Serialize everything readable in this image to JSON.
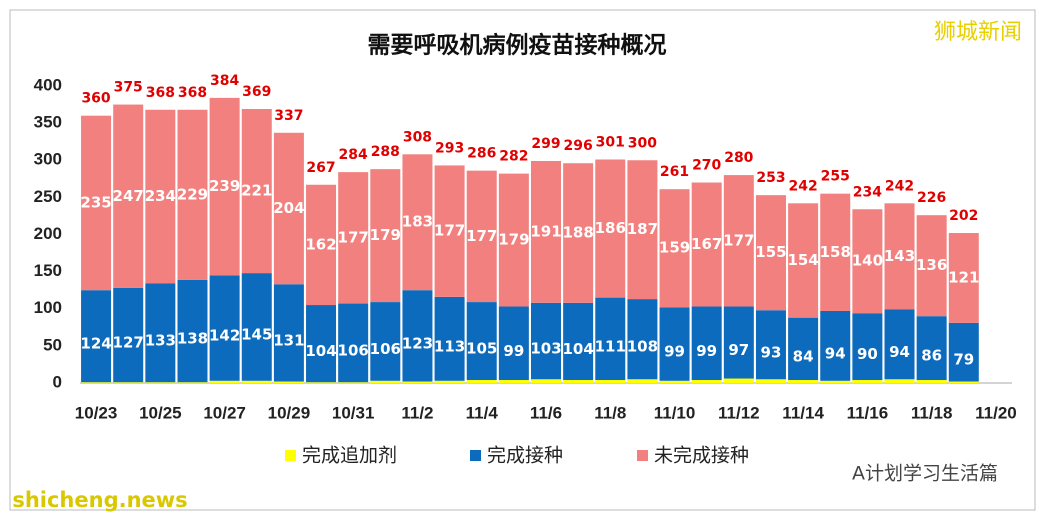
{
  "chart_data": {
    "type": "stacked_bar",
    "title": "需要呼吸机病例疫苗接种概况",
    "categories": [
      "10/23",
      null,
      "10/25",
      null,
      "10/27",
      null,
      "10/29",
      null,
      "10/31",
      null,
      "11/2",
      null,
      "11/4",
      null,
      "11/6",
      null,
      "11/8",
      null,
      "11/10",
      null,
      "11/12",
      null,
      "11/14",
      null,
      "11/16",
      null,
      "11/18",
      null,
      "11/20"
    ],
    "series": [
      {
        "name": "完成追加剂",
        "color": "#ffff00",
        "values": [
          1,
          1,
          1,
          1,
          3,
          3,
          2,
          1,
          1,
          3,
          2,
          3,
          4,
          4,
          5,
          4,
          4,
          5,
          3,
          4,
          6,
          5,
          4,
          3,
          4,
          5,
          4,
          2,
          null
        ]
      },
      {
        "name": "完成接种",
        "color": "#0d6bbd",
        "values": [
          124,
          127,
          133,
          138,
          142,
          145,
          131,
          104,
          106,
          106,
          123,
          113,
          105,
          99,
          103,
          104,
          111,
          108,
          99,
          99,
          97,
          93,
          84,
          94,
          90,
          94,
          86,
          79,
          null
        ]
      },
      {
        "name": "未完成接种",
        "color": "#f1807e",
        "values": [
          235,
          247,
          234,
          229,
          239,
          221,
          204,
          162,
          177,
          179,
          183,
          177,
          177,
          179,
          191,
          188,
          186,
          187,
          159,
          167,
          177,
          155,
          154,
          158,
          140,
          143,
          136,
          121,
          null
        ]
      }
    ],
    "totals": [
      360,
      375,
      368,
      368,
      384,
      369,
      337,
      267,
      284,
      288,
      308,
      293,
      286,
      282,
      299,
      296,
      301,
      300,
      261,
      270,
      280,
      253,
      242,
      255,
      234,
      242,
      226,
      202,
      null
    ],
    "ylim": [
      0,
      400
    ],
    "yticks": [
      0,
      50,
      100,
      150,
      200,
      250,
      300,
      350,
      400
    ],
    "grid": false,
    "legend": "bottom",
    "annotations": [
      "狮城新闻",
      "A计划学习生活篇",
      "shicheng.news"
    ]
  }
}
